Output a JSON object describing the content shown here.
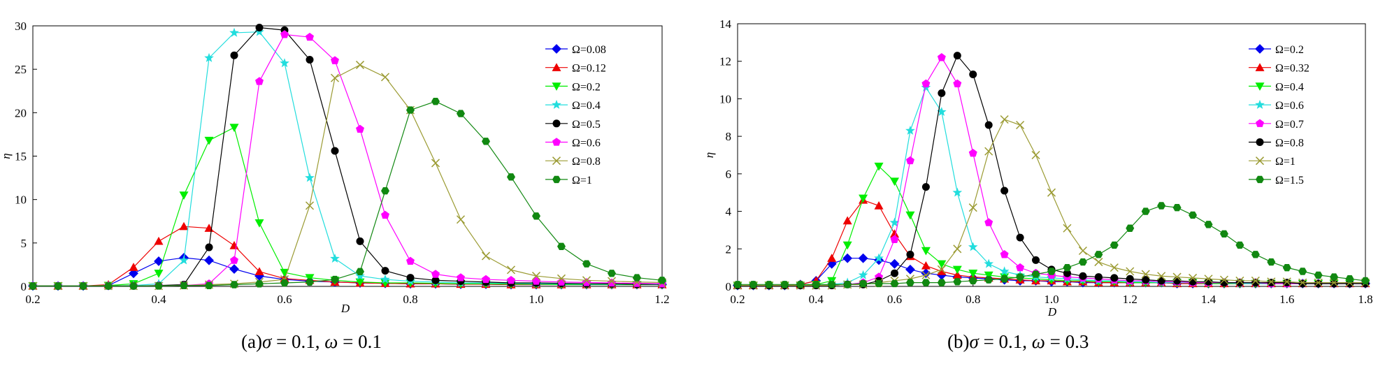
{
  "chart_data": [
    {
      "type": "line",
      "caption": {
        "prefix": "(a)",
        "symbol1": "σ",
        "value1": " = 0.1, ",
        "symbol2": "ω",
        "value2": " = 0.1"
      },
      "xlabel": "D",
      "ylabel": "η",
      "xlim": [
        0.2,
        1.2
      ],
      "ylim": [
        0,
        30
      ],
      "xticks": [
        0.2,
        0.4,
        0.6,
        0.8,
        1.0,
        1.2
      ],
      "xtick_labels": [
        "0.2",
        "0.4",
        "0.6",
        "0.8",
        "1.0",
        "1.2"
      ],
      "yticks": [
        0,
        5,
        10,
        15,
        20,
        25,
        30
      ],
      "ytick_labels": [
        "0",
        "5",
        "10",
        "15",
        "20",
        "25",
        "30"
      ],
      "legend_position": "top-right",
      "x": [
        0.2,
        0.24,
        0.28,
        0.32,
        0.36,
        0.4,
        0.44,
        0.48,
        0.52,
        0.56,
        0.6,
        0.64,
        0.68,
        0.72,
        0.76,
        0.8,
        0.84,
        0.88,
        0.92,
        0.96,
        1.0,
        1.04,
        1.08,
        1.12,
        1.16,
        1.2
      ],
      "series": [
        {
          "name": "Ω=0.08",
          "marker": "diamond",
          "color": "#0000ee",
          "values": [
            0.05,
            0.05,
            0.05,
            0.1,
            1.5,
            2.9,
            3.3,
            3.0,
            2.0,
            1.2,
            0.8,
            0.6,
            0.5,
            0.4,
            0.35,
            0.3,
            0.3,
            0.25,
            0.25,
            0.2,
            0.2,
            0.2,
            0.2,
            0.2,
            0.2,
            0.2
          ]
        },
        {
          "name": "Ω=0.12",
          "marker": "triangle-up",
          "color": "#ee0000",
          "values": [
            0.05,
            0.05,
            0.05,
            0.2,
            2.2,
            5.2,
            6.9,
            6.7,
            4.7,
            1.7,
            0.9,
            0.7,
            0.5,
            0.4,
            0.35,
            0.3,
            0.3,
            0.25,
            0.25,
            0.2,
            0.2,
            0.2,
            0.2,
            0.2,
            0.2,
            0.2
          ]
        },
        {
          "name": "Ω=0.2",
          "marker": "triangle-down",
          "color": "#00ee00",
          "values": [
            0.05,
            0.05,
            0.05,
            0.1,
            0.3,
            1.5,
            10.5,
            16.8,
            18.3,
            7.3,
            1.6,
            1.0,
            0.7,
            0.5,
            0.4,
            0.4,
            0.35,
            0.3,
            0.3,
            0.25,
            0.25,
            0.2,
            0.2,
            0.2,
            0.2,
            0.2
          ]
        },
        {
          "name": "Ω=0.4",
          "marker": "star",
          "color": "#22dddd",
          "values": [
            0.05,
            0.05,
            0.05,
            0.05,
            0.1,
            0.3,
            3.0,
            26.3,
            29.2,
            29.3,
            25.7,
            12.5,
            3.2,
            1.2,
            0.8,
            0.6,
            0.5,
            0.4,
            0.4,
            0.35,
            0.3,
            0.3,
            0.25,
            0.25,
            0.25,
            0.2
          ]
        },
        {
          "name": "Ω=0.5",
          "marker": "circle",
          "color": "#000000",
          "values": [
            0.05,
            0.05,
            0.05,
            0.05,
            0.05,
            0.1,
            0.2,
            4.5,
            26.6,
            29.8,
            29.5,
            26.1,
            15.6,
            5.2,
            1.8,
            1.0,
            0.7,
            0.6,
            0.5,
            0.4,
            0.4,
            0.35,
            0.3,
            0.3,
            0.25,
            0.25
          ]
        },
        {
          "name": "Ω=0.6",
          "marker": "pentagon",
          "color": "#ff00ff",
          "values": [
            0.05,
            0.05,
            0.05,
            0.05,
            0.05,
            0.05,
            0.1,
            0.3,
            3.0,
            23.6,
            29.0,
            28.7,
            26.0,
            18.1,
            8.2,
            2.9,
            1.4,
            1.0,
            0.8,
            0.7,
            0.6,
            0.5,
            0.45,
            0.4,
            0.35,
            0.3
          ]
        },
        {
          "name": "Ω=0.8",
          "marker": "cross",
          "color": "#9b9b33",
          "values": [
            0.05,
            0.05,
            0.05,
            0.05,
            0.05,
            0.05,
            0.1,
            0.2,
            0.3,
            0.5,
            0.8,
            9.3,
            24.0,
            25.5,
            24.1,
            20.3,
            14.2,
            7.7,
            3.5,
            1.9,
            1.2,
            0.9,
            0.7,
            0.6,
            0.5,
            0.45
          ]
        },
        {
          "name": "Ω=1",
          "marker": "hexagon",
          "color": "#118811",
          "values": [
            0.05,
            0.05,
            0.05,
            0.05,
            0.05,
            0.05,
            0.1,
            0.1,
            0.2,
            0.3,
            0.4,
            0.5,
            0.8,
            1.7,
            11.0,
            20.3,
            21.3,
            19.9,
            16.7,
            12.6,
            8.1,
            4.6,
            2.6,
            1.5,
            1.0,
            0.7
          ]
        }
      ]
    },
    {
      "type": "line",
      "caption": {
        "prefix": "(b)",
        "symbol1": "σ",
        "value1": " = 0.1, ",
        "symbol2": "ω",
        "value2": " = 0.3"
      },
      "xlabel": "D",
      "ylabel": "η",
      "xlim": [
        0.2,
        1.8
      ],
      "ylim": [
        0,
        14
      ],
      "xticks": [
        0.2,
        0.4,
        0.6,
        0.8,
        1.0,
        1.2,
        1.4,
        1.6,
        1.8
      ],
      "xtick_labels": [
        "0.2",
        "0.4",
        "0.6",
        "0.8",
        "1.0",
        "1.2",
        "1.4",
        "1.6",
        "1.8"
      ],
      "yticks": [
        0,
        2,
        4,
        6,
        8,
        10,
        12,
        14
      ],
      "ytick_labels": [
        "0",
        "2",
        "4",
        "6",
        "8",
        "10",
        "12",
        "14"
      ],
      "legend_position": "top-right",
      "x": [
        0.2,
        0.24,
        0.28,
        0.32,
        0.36,
        0.4,
        0.44,
        0.48,
        0.52,
        0.56,
        0.6,
        0.64,
        0.68,
        0.72,
        0.76,
        0.8,
        0.84,
        0.88,
        0.92,
        0.96,
        1.0,
        1.04,
        1.08,
        1.12,
        1.16,
        1.2,
        1.24,
        1.28,
        1.32,
        1.36,
        1.4,
        1.44,
        1.48,
        1.52,
        1.56,
        1.6,
        1.64,
        1.68,
        1.72,
        1.76,
        1.8
      ],
      "series": [
        {
          "name": "Ω=0.2",
          "marker": "diamond",
          "color": "#0000ee",
          "values": [
            0.05,
            0.05,
            0.05,
            0.05,
            0.1,
            0.3,
            1.2,
            1.5,
            1.5,
            1.4,
            1.2,
            0.9,
            0.7,
            0.6,
            0.5,
            0.45,
            0.4,
            0.35,
            0.3,
            0.3,
            0.25,
            0.25,
            0.2,
            0.2,
            0.2,
            0.2,
            0.2,
            0.2,
            0.15,
            0.15,
            0.15,
            0.15,
            0.15,
            0.15,
            0.15,
            0.15,
            0.15,
            0.15,
            0.15,
            0.15,
            0.15
          ]
        },
        {
          "name": "Ω=0.32",
          "marker": "triangle-up",
          "color": "#ee0000",
          "values": [
            0.05,
            0.05,
            0.05,
            0.05,
            0.1,
            0.3,
            1.5,
            3.5,
            4.6,
            4.3,
            2.8,
            1.6,
            1.1,
            0.8,
            0.6,
            0.5,
            0.45,
            0.4,
            0.35,
            0.3,
            0.3,
            0.25,
            0.25,
            0.2,
            0.2,
            0.2,
            0.2,
            0.2,
            0.15,
            0.15,
            0.15,
            0.15,
            0.15,
            0.15,
            0.15,
            0.15,
            0.15,
            0.15,
            0.15,
            0.15,
            0.15
          ]
        },
        {
          "name": "Ω=0.4",
          "marker": "triangle-down",
          "color": "#00ee00",
          "values": [
            0.05,
            0.05,
            0.05,
            0.05,
            0.05,
            0.1,
            0.3,
            2.2,
            4.7,
            6.4,
            5.6,
            3.8,
            1.9,
            1.2,
            0.9,
            0.7,
            0.6,
            0.5,
            0.45,
            0.4,
            0.35,
            0.3,
            0.3,
            0.25,
            0.25,
            0.2,
            0.2,
            0.2,
            0.2,
            0.2,
            0.15,
            0.15,
            0.15,
            0.15,
            0.15,
            0.15,
            0.15,
            0.15,
            0.15,
            0.15,
            0.15
          ]
        },
        {
          "name": "Ω=0.6",
          "marker": "star",
          "color": "#22dddd",
          "values": [
            0.05,
            0.05,
            0.05,
            0.05,
            0.05,
            0.05,
            0.1,
            0.2,
            0.6,
            1.5,
            3.4,
            8.3,
            10.6,
            9.3,
            5.0,
            2.1,
            1.2,
            0.8,
            0.6,
            0.5,
            0.45,
            0.4,
            0.35,
            0.3,
            0.3,
            0.25,
            0.25,
            0.2,
            0.2,
            0.2,
            0.2,
            0.2,
            0.15,
            0.15,
            0.15,
            0.15,
            0.15,
            0.15,
            0.15,
            0.15,
            0.15
          ]
        },
        {
          "name": "Ω=0.7",
          "marker": "pentagon",
          "color": "#ff00ff",
          "values": [
            0.05,
            0.05,
            0.05,
            0.05,
            0.05,
            0.05,
            0.05,
            0.1,
            0.2,
            0.5,
            2.5,
            6.7,
            10.8,
            12.2,
            10.8,
            7.1,
            3.4,
            1.7,
            1.0,
            0.7,
            0.6,
            0.5,
            0.45,
            0.4,
            0.35,
            0.3,
            0.3,
            0.25,
            0.25,
            0.2,
            0.2,
            0.2,
            0.2,
            0.2,
            0.15,
            0.15,
            0.15,
            0.15,
            0.15,
            0.15,
            0.15
          ]
        },
        {
          "name": "Ω=0.8",
          "marker": "circle",
          "color": "#000000",
          "values": [
            0.05,
            0.05,
            0.05,
            0.05,
            0.05,
            0.05,
            0.05,
            0.1,
            0.1,
            0.3,
            0.7,
            1.7,
            5.3,
            10.3,
            12.3,
            11.3,
            8.6,
            5.1,
            2.6,
            1.4,
            0.9,
            0.7,
            0.55,
            0.5,
            0.45,
            0.4,
            0.35,
            0.3,
            0.3,
            0.25,
            0.25,
            0.2,
            0.2,
            0.2,
            0.2,
            0.2,
            0.15,
            0.15,
            0.15,
            0.15,
            0.15
          ]
        },
        {
          "name": "Ω=1",
          "marker": "cross",
          "color": "#9b9b33",
          "values": [
            0.05,
            0.05,
            0.05,
            0.05,
            0.05,
            0.05,
            0.05,
            0.1,
            0.1,
            0.2,
            0.3,
            0.4,
            0.6,
            0.9,
            2.0,
            4.2,
            7.2,
            8.9,
            8.6,
            7.0,
            5.0,
            3.1,
            1.9,
            1.3,
            1.0,
            0.8,
            0.65,
            0.55,
            0.5,
            0.45,
            0.4,
            0.35,
            0.3,
            0.3,
            0.25,
            0.25,
            0.2,
            0.2,
            0.2,
            0.2,
            0.2
          ]
        },
        {
          "name": "Ω=1.5",
          "marker": "hexagon",
          "color": "#118811",
          "values": [
            0.1,
            0.1,
            0.1,
            0.1,
            0.1,
            0.1,
            0.1,
            0.1,
            0.15,
            0.15,
            0.15,
            0.2,
            0.2,
            0.2,
            0.25,
            0.3,
            0.35,
            0.4,
            0.5,
            0.65,
            0.8,
            1.0,
            1.3,
            1.7,
            2.2,
            3.1,
            4.0,
            4.3,
            4.2,
            3.8,
            3.3,
            2.8,
            2.2,
            1.7,
            1.3,
            1.0,
            0.8,
            0.6,
            0.5,
            0.4,
            0.3
          ]
        }
      ]
    }
  ]
}
